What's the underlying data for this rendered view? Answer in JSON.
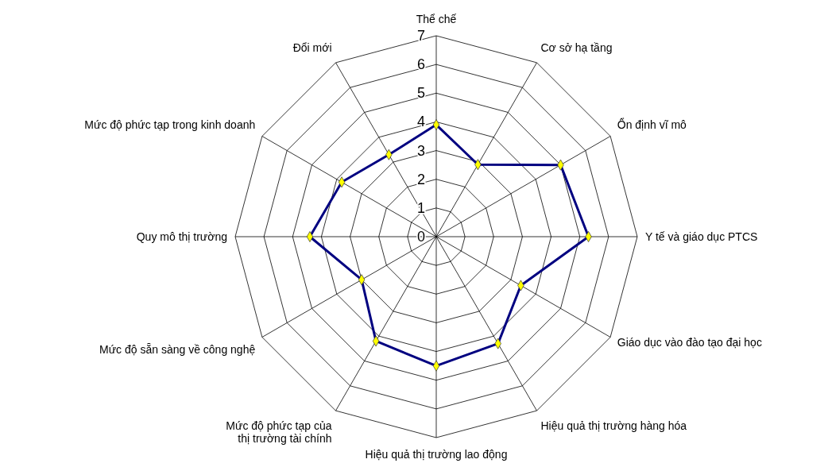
{
  "chart_data": {
    "type": "radar",
    "categories": [
      "Thể chế",
      "Cơ sở hạ tầng",
      "Ổn định vĩ mô",
      "Y tế và giáo dục PTCS",
      "Giáo dục vào đào tạo đại học",
      "Hiệu quả thị trường hàng hóa",
      "Hiệu quả thị trường lao động",
      "Mức độ phức tạp của thị trường tài chính",
      "Mức độ sẵn sàng về công nghệ",
      "Quy mô thị trường",
      "Mức độ phức tạp trong kinh doanh",
      "Đổi mới"
    ],
    "series": [
      {
        "color": "#000080",
        "values": [
          3.9,
          2.9,
          5.0,
          5.3,
          3.4,
          4.3,
          4.5,
          4.2,
          3.0,
          4.4,
          3.8,
          3.3
        ]
      }
    ],
    "ylim": [
      0,
      7
    ],
    "yticks": [
      0,
      1,
      2,
      3,
      4,
      5,
      6,
      7
    ],
    "grid": true,
    "marker": "diamond"
  }
}
